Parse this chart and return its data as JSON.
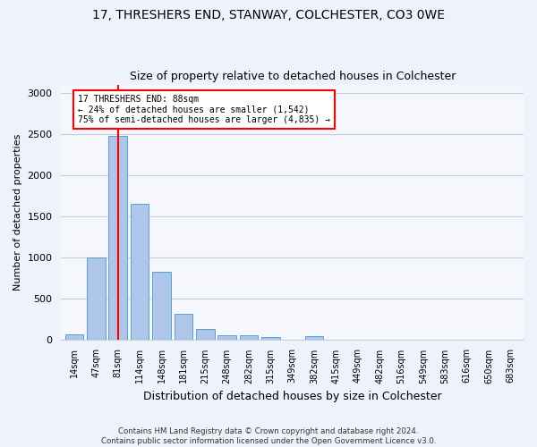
{
  "title": "17, THRESHERS END, STANWAY, COLCHESTER, CO3 0WE",
  "subtitle": "Size of property relative to detached houses in Colchester",
  "xlabel": "Distribution of detached houses by size in Colchester",
  "ylabel": "Number of detached properties",
  "categories": [
    "14sqm",
    "47sqm",
    "81sqm",
    "114sqm",
    "148sqm",
    "181sqm",
    "215sqm",
    "248sqm",
    "282sqm",
    "315sqm",
    "349sqm",
    "382sqm",
    "415sqm",
    "449sqm",
    "482sqm",
    "516sqm",
    "549sqm",
    "583sqm",
    "616sqm",
    "650sqm",
    "683sqm"
  ],
  "bar_values": [
    60,
    1000,
    2470,
    1650,
    820,
    310,
    130,
    55,
    45,
    25,
    0,
    35,
    0,
    0,
    0,
    0,
    0,
    0,
    0,
    0,
    0
  ],
  "bar_color": "#aec6e8",
  "bar_edgecolor": "#5a9fd4",
  "red_line_index": 2,
  "ylim": [
    0,
    3100
  ],
  "yticks": [
    0,
    500,
    1000,
    1500,
    2000,
    2500,
    3000
  ],
  "annotation_title": "17 THRESHERS END: 88sqm",
  "annotation_line1": "← 24% of detached houses are smaller (1,542)",
  "annotation_line2": "75% of semi-detached houses are larger (4,835) →",
  "footer1": "Contains HM Land Registry data © Crown copyright and database right 2024.",
  "footer2": "Contains public sector information licensed under the Open Government Licence v3.0.",
  "bg_color": "#eef2fb",
  "plot_bg_color": "#f5f7fd"
}
